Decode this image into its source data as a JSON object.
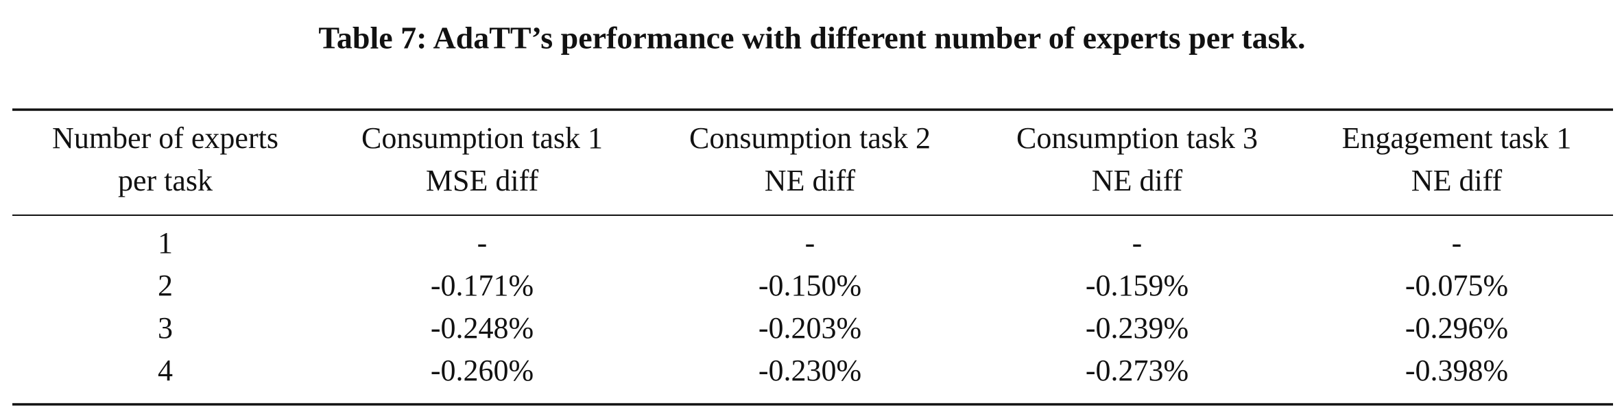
{
  "title": "Table 7: AdaTT’s performance with different number of experts per task.",
  "table": {
    "header": [
      [
        "Number of experts",
        "per task"
      ],
      [
        "Consumption task 1",
        "MSE diff"
      ],
      [
        "Consumption task 2",
        "NE diff"
      ],
      [
        "Consumption task 3",
        "NE diff"
      ],
      [
        "Engagement task 1",
        "NE diff"
      ]
    ],
    "rows": [
      [
        "1",
        "-",
        "-",
        "-",
        "-"
      ],
      [
        "2",
        "-0.171%",
        "-0.150%",
        "-0.159%",
        "-0.075%"
      ],
      [
        "3",
        "-0.248%",
        "-0.203%",
        "-0.239%",
        "-0.296%"
      ],
      [
        "4",
        "-0.260%",
        "-0.230%",
        "-0.273%",
        "-0.398%"
      ]
    ]
  }
}
